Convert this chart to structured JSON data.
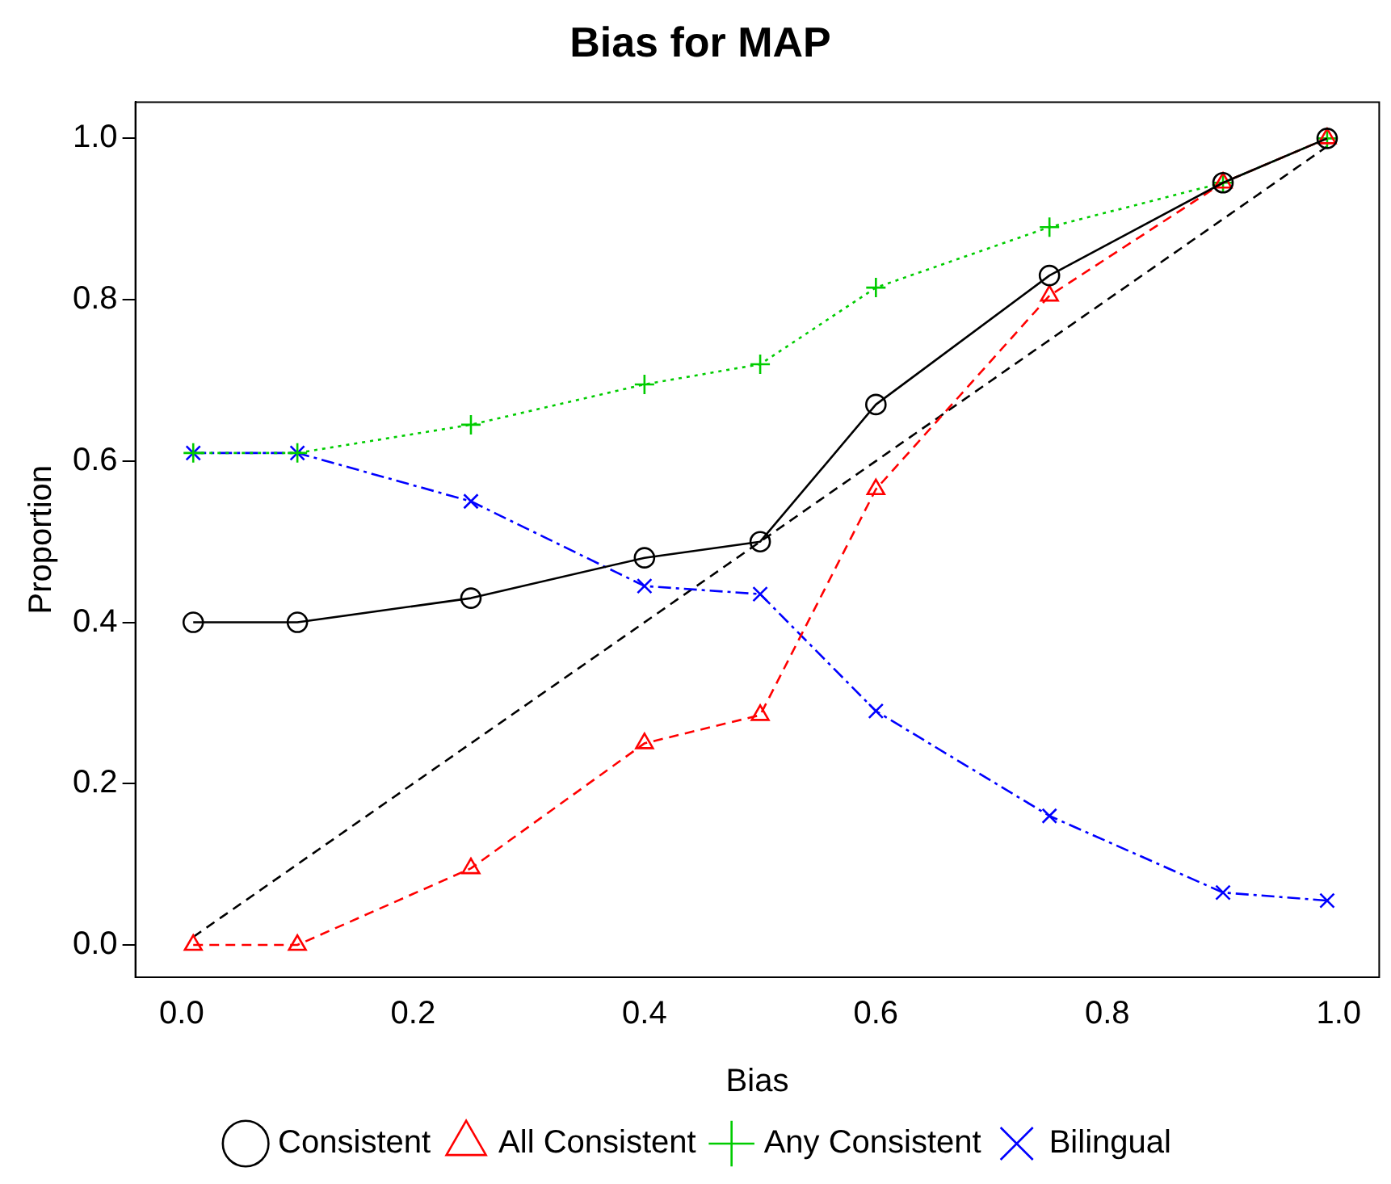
{
  "chart_data": {
    "type": "line",
    "title": "Bias for MAP",
    "xlabel": "Bias",
    "ylabel": "Proportion",
    "x": [
      0.01,
      0.1,
      0.25,
      0.4,
      0.5,
      0.6,
      0.75,
      0.9,
      0.99
    ],
    "series": [
      {
        "name": "Consistent",
        "color": "#000000",
        "marker": "circle",
        "line_style": "solid",
        "values": [
          0.4,
          0.4,
          0.43,
          0.48,
          0.5,
          0.67,
          0.83,
          0.945,
          1.0
        ]
      },
      {
        "name": "All Consistent",
        "color": "#ff0000",
        "marker": "triangle",
        "line_style": "dashed",
        "values": [
          0.0,
          0.0,
          0.095,
          0.25,
          0.285,
          0.565,
          0.805,
          0.945,
          1.0
        ]
      },
      {
        "name": "Any Consistent",
        "color": "#00cc00",
        "marker": "cross",
        "line_style": "dotted",
        "values": [
          0.61,
          0.61,
          0.645,
          0.695,
          0.72,
          0.815,
          0.89,
          0.945,
          1.0
        ]
      },
      {
        "name": "Bilingual",
        "color": "#0000ff",
        "marker": "x",
        "line_style": "dashdot",
        "values": [
          0.61,
          0.61,
          0.55,
          0.445,
          0.435,
          0.29,
          0.16,
          0.065,
          0.055
        ]
      },
      {
        "type": "line",
        "color": "#000000",
        "marker": "none",
        "line_style": "dashed",
        "x": [
          0.01,
          0.99
        ],
        "values": [
          0.01,
          0.99
        ]
      }
    ],
    "xlim": [
      -0.04,
      1.035
    ],
    "xticks": [
      {
        "value": 0,
        "label": "0.0"
      },
      0.2,
      0.4,
      0.6,
      0.8,
      {
        "value": 1,
        "label": "1.0"
      }
    ],
    "ylim": [
      -0.04,
      1.045
    ],
    "yticks": [
      {
        "value": 0,
        "label": "0.0"
      },
      0.2,
      0.4,
      0.6,
      0.8,
      {
        "value": 1,
        "label": "1.0"
      }
    ],
    "grid": false,
    "legend": "bottom"
  }
}
